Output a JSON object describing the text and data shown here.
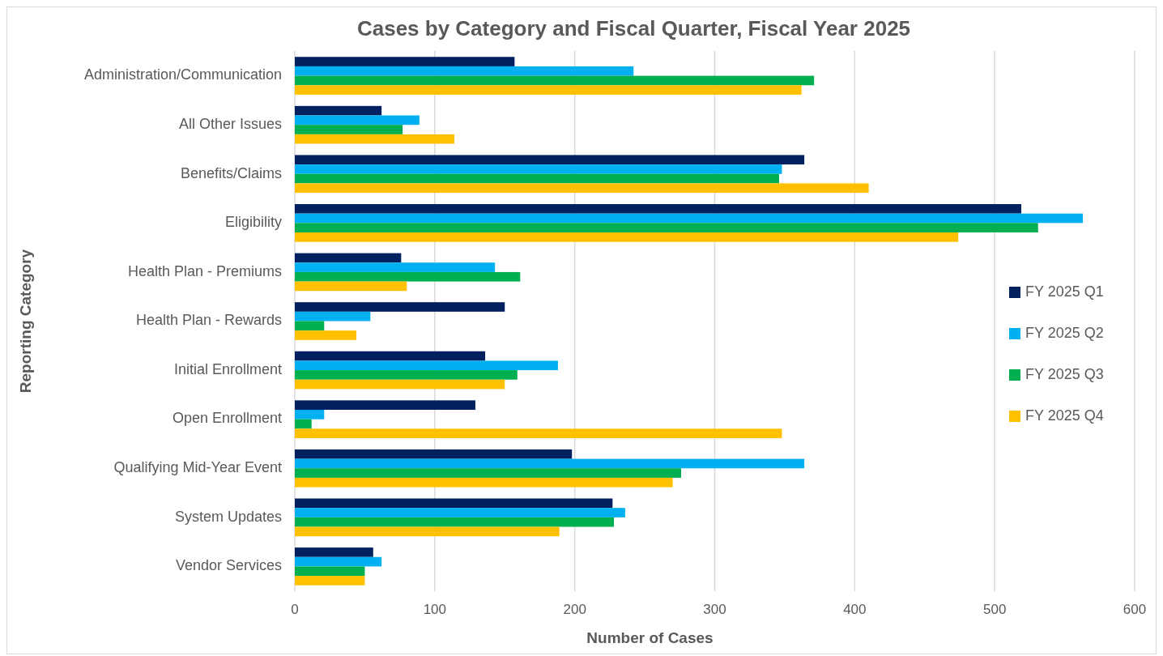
{
  "chart_data": {
    "type": "bar",
    "orientation": "horizontal",
    "title": "Cases by Category and Fiscal Quarter, Fiscal Year 2025",
    "xlabel": "Number of Cases",
    "ylabel": "Reporting Category",
    "categories": [
      "Administration/Communication",
      "All Other Issues",
      "Benefits/Claims",
      "Eligibility",
      "Health Plan - Premiums",
      "Health Plan - Rewards",
      "Initial Enrollment",
      "Open Enrollment",
      "Qualifying Mid-Year Event",
      "System Updates",
      "Vendor Services"
    ],
    "series": [
      {
        "name": "FY 2025 Q1",
        "color": "#002060",
        "values": [
          157,
          62,
          364,
          519,
          76,
          150,
          136,
          129,
          198,
          227,
          56
        ]
      },
      {
        "name": "FY 2025 Q2",
        "color": "#00b0f0",
        "values": [
          242,
          89,
          348,
          563,
          143,
          54,
          188,
          21,
          364,
          236,
          62
        ]
      },
      {
        "name": "FY 2025 Q3",
        "color": "#00b050",
        "values": [
          371,
          77,
          346,
          531,
          161,
          21,
          159,
          12,
          276,
          228,
          50
        ]
      },
      {
        "name": "FY 2025 Q4",
        "color": "#ffc000",
        "values": [
          362,
          114,
          410,
          474,
          80,
          44,
          150,
          348,
          270,
          189,
          50
        ]
      }
    ],
    "xlim": [
      0,
      600
    ],
    "xticks": [
      0,
      100,
      200,
      300,
      400,
      500,
      600
    ],
    "grid": "x",
    "legend": "right"
  }
}
